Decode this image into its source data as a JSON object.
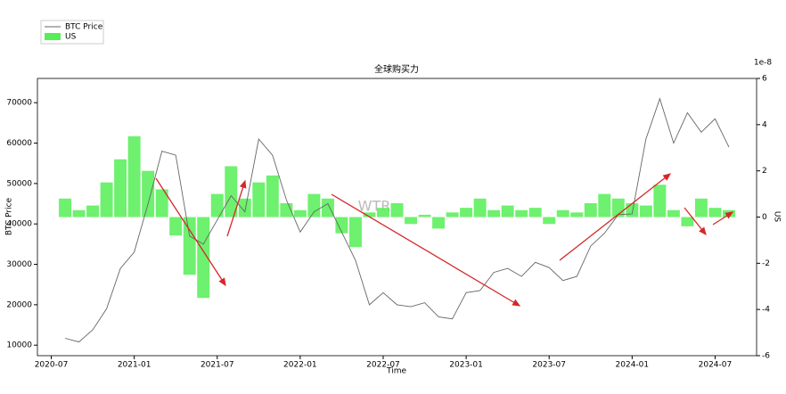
{
  "chart_data": {
    "type": "line_bar",
    "title": "全球购买力",
    "watermark": "WTR",
    "x_label": "Time",
    "y_label": "BTC Price",
    "y2_label": "US",
    "y2_offset_label": "1e-8",
    "xlim": [
      "2020-06",
      "2024-10"
    ],
    "xticks": [
      "2020-07",
      "2021-01",
      "2021-07",
      "2022-01",
      "2022-07",
      "2023-01",
      "2023-07",
      "2024-01",
      "2024-07"
    ],
    "ylim": [
      7400,
      76000
    ],
    "yticks": [
      10000,
      20000,
      30000,
      40000,
      50000,
      60000,
      70000
    ],
    "y2lim": [
      -6,
      6
    ],
    "y2ticks": [
      -6,
      -4,
      -2,
      0,
      2,
      4,
      6
    ],
    "legend": "upper left",
    "x": [
      "2020-08",
      "2020-09",
      "2020-10",
      "2020-11",
      "2020-12",
      "2021-01",
      "2021-02",
      "2021-03",
      "2021-04",
      "2021-05",
      "2021-06",
      "2021-07",
      "2021-08",
      "2021-09",
      "2021-10",
      "2021-11",
      "2021-12",
      "2022-01",
      "2022-02",
      "2022-03",
      "2022-04",
      "2022-05",
      "2022-06",
      "2022-07",
      "2022-08",
      "2022-09",
      "2022-10",
      "2022-11",
      "2022-12",
      "2023-01",
      "2023-02",
      "2023-03",
      "2023-04",
      "2023-05",
      "2023-06",
      "2023-07",
      "2023-08",
      "2023-09",
      "2023-10",
      "2023-11",
      "2023-12",
      "2024-01",
      "2024-02",
      "2024-03",
      "2024-04",
      "2024-05",
      "2024-06",
      "2024-07",
      "2024-08"
    ],
    "series": [
      {
        "name": "BTC Price",
        "kind": "line",
        "color": "#666666",
        "values": [
          11700,
          10800,
          13800,
          19000,
          29000,
          33000,
          45000,
          58000,
          57000,
          37000,
          35000,
          41000,
          47000,
          43000,
          61000,
          57000,
          46000,
          38000,
          43000,
          45000,
          38000,
          31000,
          20000,
          23000,
          20000,
          19500,
          20500,
          17000,
          16500,
          23000,
          23500,
          28000,
          29000,
          27000,
          30500,
          29200,
          26000,
          27000,
          34500,
          37700,
          42300,
          42500,
          61000,
          71000,
          60000,
          67500,
          62700,
          66000,
          59000
        ]
      },
      {
        "name": "US",
        "kind": "bar",
        "axis": "y2",
        "color": "#55ee55",
        "values": [
          0.8,
          0.3,
          0.5,
          1.5,
          2.5,
          3.5,
          2.0,
          1.2,
          -0.8,
          -2.5,
          -3.5,
          1.0,
          2.2,
          0.8,
          1.5,
          1.8,
          0.6,
          0.3,
          1.0,
          0.8,
          -0.7,
          -1.3,
          0.2,
          0.4,
          0.6,
          -0.3,
          0.1,
          -0.5,
          0.2,
          0.4,
          0.8,
          0.3,
          0.5,
          0.3,
          0.4,
          -0.3,
          0.3,
          0.2,
          0.6,
          1.0,
          0.8,
          0.6,
          0.5,
          1.4,
          0.3,
          -0.4,
          0.8,
          0.4,
          0.3
        ]
      }
    ]
  }
}
